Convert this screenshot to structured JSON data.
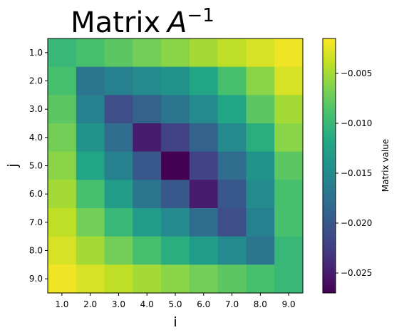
{
  "chart_data": {
    "type": "heatmap",
    "title": "Matrix",
    "title_math_base": "A",
    "title_math_sup": "−1",
    "xlabel": "i",
    "ylabel": "j",
    "x_categories": [
      "1.0",
      "2.0",
      "3.0",
      "4.0",
      "5.0",
      "6.0",
      "7.0",
      "8.0",
      "9.0"
    ],
    "y_categories": [
      "1.0",
      "2.0",
      "3.0",
      "4.0",
      "5.0",
      "6.0",
      "7.0",
      "8.0",
      "9.0"
    ],
    "colormap": "viridis",
    "color_range": [
      -0.027,
      -0.0015
    ],
    "colorbar": {
      "label": "Matrix value",
      "ticks": [
        -0.025,
        -0.02,
        -0.015,
        -0.01,
        -0.005
      ],
      "tick_labels": [
        "−0.025",
        "−0.020",
        "−0.015",
        "−0.010",
        "−0.005"
      ]
    },
    "values": [
      [
        -0.01,
        -0.009,
        -0.008,
        -0.007,
        -0.006,
        -0.005,
        -0.004,
        -0.003,
        -0.002
      ],
      [
        -0.009,
        -0.017,
        -0.016,
        -0.015,
        -0.014,
        -0.012,
        -0.009,
        -0.006,
        -0.003
      ],
      [
        -0.008,
        -0.016,
        -0.021,
        -0.019,
        -0.017,
        -0.015,
        -0.012,
        -0.008,
        -0.005
      ],
      [
        -0.007,
        -0.014,
        -0.018,
        -0.025,
        -0.022,
        -0.019,
        -0.015,
        -0.011,
        -0.006
      ],
      [
        -0.006,
        -0.012,
        -0.016,
        -0.02,
        -0.027,
        -0.022,
        -0.018,
        -0.014,
        -0.008
      ],
      [
        -0.005,
        -0.009,
        -0.013,
        -0.017,
        -0.02,
        -0.025,
        -0.02,
        -0.015,
        -0.009
      ],
      [
        -0.004,
        -0.007,
        -0.01,
        -0.013,
        -0.015,
        -0.018,
        -0.021,
        -0.016,
        -0.009
      ],
      [
        -0.003,
        -0.005,
        -0.007,
        -0.009,
        -0.011,
        -0.013,
        -0.015,
        -0.017,
        -0.01
      ],
      [
        -0.002,
        -0.003,
        -0.004,
        -0.005,
        -0.006,
        -0.007,
        -0.008,
        -0.009,
        -0.01
      ]
    ]
  }
}
